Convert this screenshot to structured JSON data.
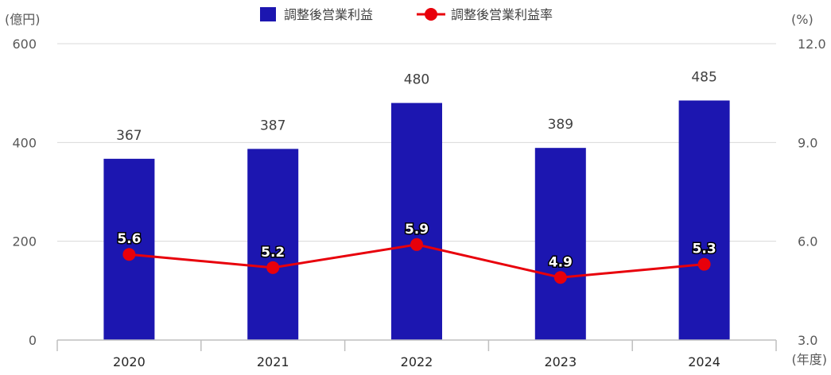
{
  "chart_data": {
    "type": "bar",
    "categories": [
      "2020",
      "2021",
      "2022",
      "2023",
      "2024"
    ],
    "series": [
      {
        "name": "調整後営業利益",
        "kind": "bar",
        "axis": "left",
        "color": "#1c16b0",
        "values": [
          367,
          387,
          480,
          389,
          485
        ],
        "labels": [
          "367",
          "387",
          "480",
          "389",
          "485"
        ]
      },
      {
        "name": "調整後営業利益率",
        "kind": "line",
        "axis": "right",
        "color": "#e8000b",
        "values": [
          5.6,
          5.2,
          5.9,
          4.9,
          5.3
        ],
        "labels": [
          "5.6",
          "5.2",
          "5.9",
          "4.9",
          "5.3"
        ]
      }
    ],
    "y_left": {
      "unit": "(億円)",
      "ylim": [
        0,
        600
      ],
      "ticks": [
        "0",
        "200",
        "400",
        "600"
      ]
    },
    "y_right": {
      "unit": "(%)",
      "ylim": [
        3.0,
        12.0
      ],
      "ticks": [
        "3.0",
        "6.0",
        "9.0",
        "12.0"
      ]
    },
    "x_unit": "(年度)",
    "grid": true,
    "legend_position": "top-center"
  }
}
